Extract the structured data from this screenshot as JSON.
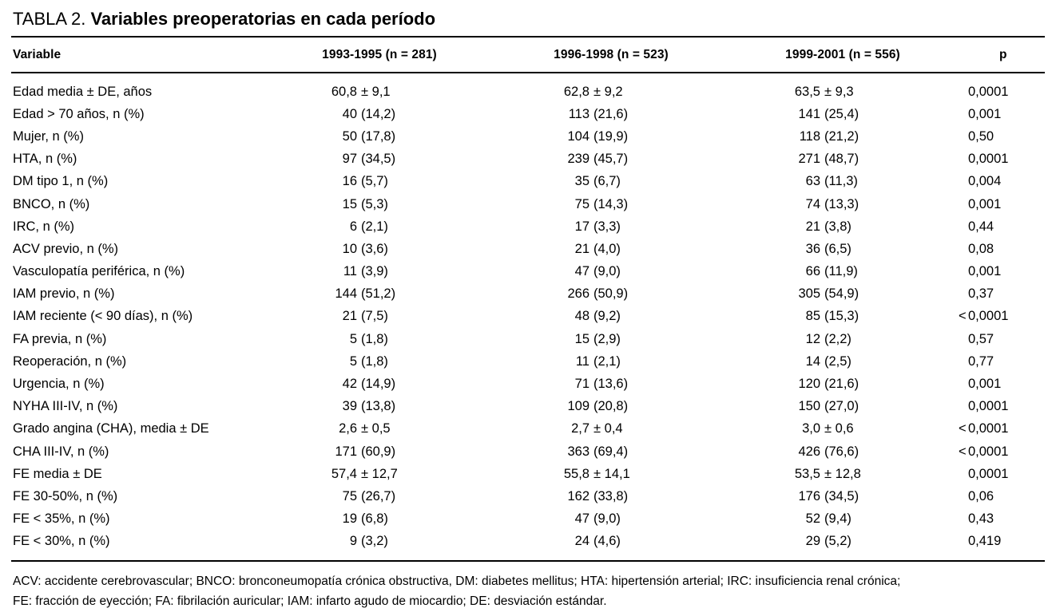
{
  "title": {
    "label": "TABLA 2.",
    "text": "Variables preoperatorias en cada período"
  },
  "table": {
    "columns": [
      "Variable",
      "1993-1995 (n = 281)",
      "1996-1998 (n = 523)",
      "1999-2001 (n = 556)",
      "p"
    ],
    "rows": [
      {
        "variable": "Edad media ± DE, años",
        "values": [
          "60,8 ± 9,1",
          "62,8 ± 9,2",
          "63,5 ± 9,3"
        ],
        "p": "0,0001"
      },
      {
        "variable": "Edad > 70 años, n (%)",
        "values": [
          "40 (14,2)",
          "113 (21,6)",
          "141 (25,4)"
        ],
        "p": "0,001"
      },
      {
        "variable": "Mujer, n (%)",
        "values": [
          "50 (17,8)",
          "104 (19,9)",
          "118 (21,2)"
        ],
        "p": "0,50"
      },
      {
        "variable": "HTA, n (%)",
        "values": [
          "97 (34,5)",
          "239 (45,7)",
          "271 (48,7)"
        ],
        "p": "0,0001"
      },
      {
        "variable": "DM tipo 1, n (%)",
        "values": [
          "16 (5,7)",
          "35 (6,7)",
          "63 (11,3)"
        ],
        "p": "0,004"
      },
      {
        "variable": "BNCO, n (%)",
        "values": [
          "15 (5,3)",
          "75 (14,3)",
          "74 (13,3)"
        ],
        "p": "0,001"
      },
      {
        "variable": "IRC, n (%)",
        "values": [
          "6 (2,1)",
          "17 (3,3)",
          "21 (3,8)"
        ],
        "p": "0,44"
      },
      {
        "variable": "ACV previo, n (%)",
        "values": [
          "10 (3,6)",
          "21 (4,0)",
          "36 (6,5)"
        ],
        "p": "0,08"
      },
      {
        "variable": "Vasculopatía periférica, n (%)",
        "values": [
          "11 (3,9)",
          "47 (9,0)",
          "66 (11,9)"
        ],
        "p": "0,001"
      },
      {
        "variable": "IAM previo, n (%)",
        "values": [
          "144 (51,2)",
          "266 (50,9)",
          "305 (54,9)"
        ],
        "p": "0,37"
      },
      {
        "variable": "IAM reciente (< 90 días), n (%)",
        "values": [
          "21 (7,5)",
          "48 (9,2)",
          "85 (15,3)"
        ],
        "p": "< 0,0001"
      },
      {
        "variable": "FA previa, n (%)",
        "values": [
          "5 (1,8)",
          "15 (2,9)",
          "12 (2,2)"
        ],
        "p": "0,57"
      },
      {
        "variable": "Reoperación, n (%)",
        "values": [
          "5 (1,8)",
          "11 (2,1)",
          "14 (2,5)"
        ],
        "p": "0,77"
      },
      {
        "variable": "Urgencia, n (%)",
        "values": [
          "42 (14,9)",
          "71 (13,6)",
          "120 (21,6)"
        ],
        "p": "0,001"
      },
      {
        "variable": "NYHA III-IV, n (%)",
        "values": [
          "39 (13,8)",
          "109 (20,8)",
          "150 (27,0)"
        ],
        "p": "0,0001"
      },
      {
        "variable": "Grado angina (CHA), media ± DE",
        "values": [
          "2,6 ± 0,5",
          "2,7 ± 0,4",
          "3,0 ± 0,6"
        ],
        "p": "< 0,0001"
      },
      {
        "variable": "CHA III-IV, n (%)",
        "values": [
          "171 (60,9)",
          "363 (69,4)",
          "426 (76,6)"
        ],
        "p": "< 0,0001"
      },
      {
        "variable": "FE media ± DE",
        "values": [
          "57,4 ± 12,7",
          "55,8 ± 14,1",
          "53,5 ± 12,8"
        ],
        "p": "0,0001"
      },
      {
        "variable": "FE 30-50%, n (%)",
        "values": [
          "75 (26,7)",
          "162 (33,8)",
          "176 (34,5)"
        ],
        "p": "0,06"
      },
      {
        "variable": "FE < 35%, n (%)",
        "values": [
          "19 (6,8)",
          "47 (9,0)",
          "52 (9,4)"
        ],
        "p": "0,43"
      },
      {
        "variable": "FE < 30%, n (%)",
        "values": [
          "9 (3,2)",
          "24 (4,6)",
          "29 (5,2)"
        ],
        "p": "0,419"
      }
    ]
  },
  "footnote": {
    "line1": "ACV: accidente cerebrovascular; BNCO: bronconeumopatía crónica obstructiva, DM: diabetes mellitus; HTA: hipertensión arterial; IRC: insuficiencia renal crónica;",
    "line2": "FE: fracción de eyección; FA: fibrilación auricular; IAM: infarto agudo de miocardio; DE: desviación estándar."
  },
  "colors": {
    "text": "#000000",
    "background": "#ffffff",
    "rule": "#000000"
  }
}
